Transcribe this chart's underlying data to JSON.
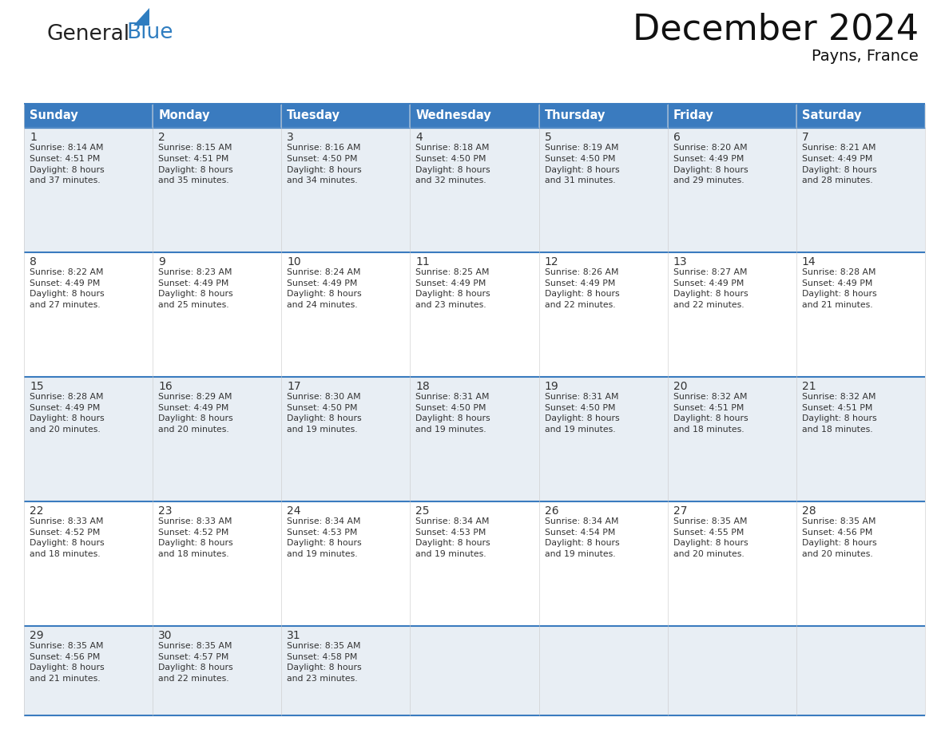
{
  "title": "December 2024",
  "subtitle": "Payns, France",
  "header_bg_color": "#3A7BBF",
  "header_text_color": "#FFFFFF",
  "header_font_size": 10.5,
  "day_num_font_size": 10,
  "cell_text_font_size": 7.8,
  "title_font_size": 32,
  "subtitle_font_size": 14,
  "days_of_week": [
    "Sunday",
    "Monday",
    "Tuesday",
    "Wednesday",
    "Thursday",
    "Friday",
    "Saturday"
  ],
  "background_color": "#FFFFFF",
  "cell_bg_even": "#E8EEF4",
  "cell_bg_odd": "#FFFFFF",
  "divider_color": "#3A7BBF",
  "logo_general_color": "#222222",
  "logo_blue_color": "#2F7DC0",
  "weeks": [
    [
      {
        "day": 1,
        "sunrise": "8:14 AM",
        "sunset": "4:51 PM",
        "daylight": "8 hours and 37 minutes"
      },
      {
        "day": 2,
        "sunrise": "8:15 AM",
        "sunset": "4:51 PM",
        "daylight": "8 hours and 35 minutes"
      },
      {
        "day": 3,
        "sunrise": "8:16 AM",
        "sunset": "4:50 PM",
        "daylight": "8 hours and 34 minutes"
      },
      {
        "day": 4,
        "sunrise": "8:18 AM",
        "sunset": "4:50 PM",
        "daylight": "8 hours and 32 minutes"
      },
      {
        "day": 5,
        "sunrise": "8:19 AM",
        "sunset": "4:50 PM",
        "daylight": "8 hours and 31 minutes"
      },
      {
        "day": 6,
        "sunrise": "8:20 AM",
        "sunset": "4:49 PM",
        "daylight": "8 hours and 29 minutes"
      },
      {
        "day": 7,
        "sunrise": "8:21 AM",
        "sunset": "4:49 PM",
        "daylight": "8 hours and 28 minutes"
      }
    ],
    [
      {
        "day": 8,
        "sunrise": "8:22 AM",
        "sunset": "4:49 PM",
        "daylight": "8 hours and 27 minutes"
      },
      {
        "day": 9,
        "sunrise": "8:23 AM",
        "sunset": "4:49 PM",
        "daylight": "8 hours and 25 minutes"
      },
      {
        "day": 10,
        "sunrise": "8:24 AM",
        "sunset": "4:49 PM",
        "daylight": "8 hours and 24 minutes"
      },
      {
        "day": 11,
        "sunrise": "8:25 AM",
        "sunset": "4:49 PM",
        "daylight": "8 hours and 23 minutes"
      },
      {
        "day": 12,
        "sunrise": "8:26 AM",
        "sunset": "4:49 PM",
        "daylight": "8 hours and 22 minutes"
      },
      {
        "day": 13,
        "sunrise": "8:27 AM",
        "sunset": "4:49 PM",
        "daylight": "8 hours and 22 minutes"
      },
      {
        "day": 14,
        "sunrise": "8:28 AM",
        "sunset": "4:49 PM",
        "daylight": "8 hours and 21 minutes"
      }
    ],
    [
      {
        "day": 15,
        "sunrise": "8:28 AM",
        "sunset": "4:49 PM",
        "daylight": "8 hours and 20 minutes"
      },
      {
        "day": 16,
        "sunrise": "8:29 AM",
        "sunset": "4:49 PM",
        "daylight": "8 hours and 20 minutes"
      },
      {
        "day": 17,
        "sunrise": "8:30 AM",
        "sunset": "4:50 PM",
        "daylight": "8 hours and 19 minutes"
      },
      {
        "day": 18,
        "sunrise": "8:31 AM",
        "sunset": "4:50 PM",
        "daylight": "8 hours and 19 minutes"
      },
      {
        "day": 19,
        "sunrise": "8:31 AM",
        "sunset": "4:50 PM",
        "daylight": "8 hours and 19 minutes"
      },
      {
        "day": 20,
        "sunrise": "8:32 AM",
        "sunset": "4:51 PM",
        "daylight": "8 hours and 18 minutes"
      },
      {
        "day": 21,
        "sunrise": "8:32 AM",
        "sunset": "4:51 PM",
        "daylight": "8 hours and 18 minutes"
      }
    ],
    [
      {
        "day": 22,
        "sunrise": "8:33 AM",
        "sunset": "4:52 PM",
        "daylight": "8 hours and 18 minutes"
      },
      {
        "day": 23,
        "sunrise": "8:33 AM",
        "sunset": "4:52 PM",
        "daylight": "8 hours and 18 minutes"
      },
      {
        "day": 24,
        "sunrise": "8:34 AM",
        "sunset": "4:53 PM",
        "daylight": "8 hours and 19 minutes"
      },
      {
        "day": 25,
        "sunrise": "8:34 AM",
        "sunset": "4:53 PM",
        "daylight": "8 hours and 19 minutes"
      },
      {
        "day": 26,
        "sunrise": "8:34 AM",
        "sunset": "4:54 PM",
        "daylight": "8 hours and 19 minutes"
      },
      {
        "day": 27,
        "sunrise": "8:35 AM",
        "sunset": "4:55 PM",
        "daylight": "8 hours and 20 minutes"
      },
      {
        "day": 28,
        "sunrise": "8:35 AM",
        "sunset": "4:56 PM",
        "daylight": "8 hours and 20 minutes"
      }
    ],
    [
      {
        "day": 29,
        "sunrise": "8:35 AM",
        "sunset": "4:56 PM",
        "daylight": "8 hours and 21 minutes"
      },
      {
        "day": 30,
        "sunrise": "8:35 AM",
        "sunset": "4:57 PM",
        "daylight": "8 hours and 22 minutes"
      },
      {
        "day": 31,
        "sunrise": "8:35 AM",
        "sunset": "4:58 PM",
        "daylight": "8 hours and 23 minutes"
      },
      null,
      null,
      null,
      null
    ]
  ]
}
